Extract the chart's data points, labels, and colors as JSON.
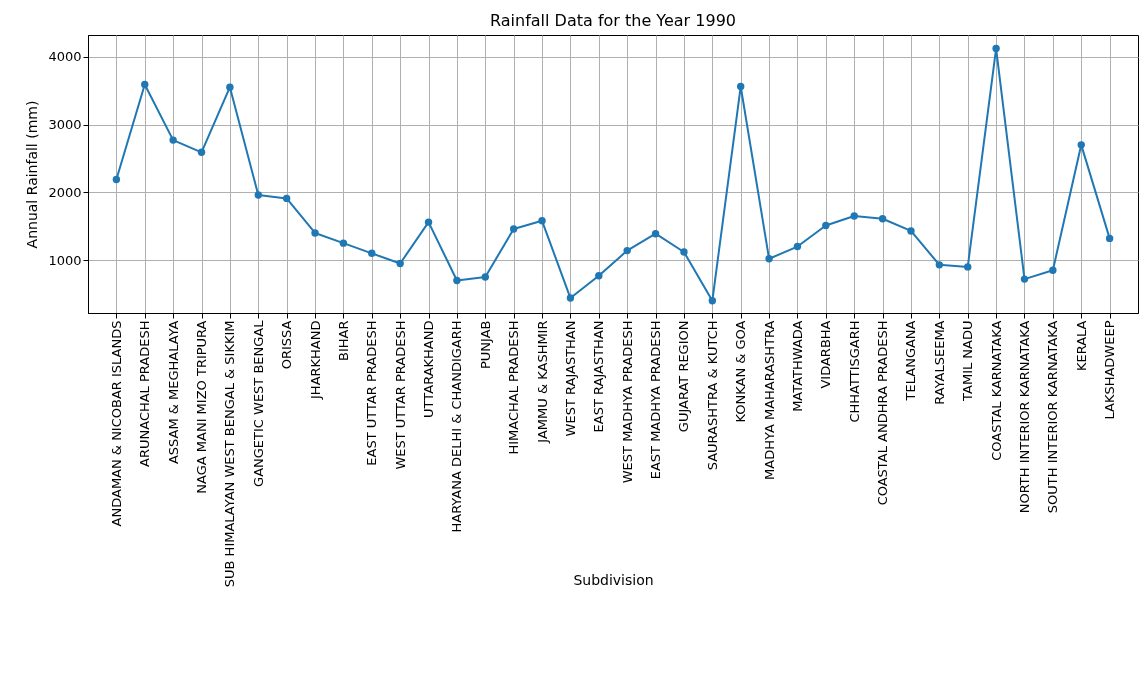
{
  "chart_data": {
    "type": "line",
    "title": "Rainfall Data for the Year 1990",
    "xlabel": "Subdivision",
    "ylabel": "Annual Rainfall (mm)",
    "categories": [
      "ANDAMAN & NICOBAR ISLANDS",
      "ARUNACHAL PRADESH",
      "ASSAM & MEGHALAYA",
      "NAGA MANI MIZO TRIPURA",
      "SUB HIMALAYAN WEST BENGAL & SIKKIM",
      "GANGETIC WEST BENGAL",
      "ORISSA",
      "JHARKHAND",
      "BIHAR",
      "EAST UTTAR PRADESH",
      "WEST UTTAR PRADESH",
      "UTTARAKHAND",
      "HARYANA DELHI & CHANDIGARH",
      "PUNJAB",
      "HIMACHAL PRADESH",
      "JAMMU & KASHMIR",
      "WEST RAJASTHAN",
      "EAST RAJASTHAN",
      "WEST MADHYA PRADESH",
      "EAST MADHYA PRADESH",
      "GUJARAT REGION",
      "SAURASHTRA & KUTCH",
      "KONKAN & GOA",
      "MADHYA MAHARASHTRA",
      "MATATHWADA",
      "VIDARBHA",
      "CHHATTISGARH",
      "COASTAL ANDHRA PRADESH",
      "TELANGANA",
      "RAYALSEEMA",
      "TAMIL NADU",
      "COASTAL KARNATAKA",
      "NORTH INTERIOR KARNATAKA",
      "SOUTH INTERIOR KARNATAKA",
      "KERALA",
      "LAKSHADWEEP"
    ],
    "series": [
      {
        "color": "#1f77b4",
        "values": [
          2190,
          3590,
          2770,
          2590,
          3550,
          1960,
          1910,
          1400,
          1250,
          1100,
          950,
          1560,
          700,
          750,
          1460,
          1580,
          440,
          770,
          1140,
          1390,
          1120,
          400,
          3560,
          1020,
          1200,
          1510,
          1650,
          1610,
          1430,
          930,
          900,
          4120,
          720,
          850,
          2700,
          1320
        ]
      }
    ],
    "ylim": [
      220,
      4320
    ],
    "yticks": [
      1000,
      2000,
      3000,
      4000
    ],
    "grid": true,
    "marker": "circle",
    "line_style": "solid"
  }
}
